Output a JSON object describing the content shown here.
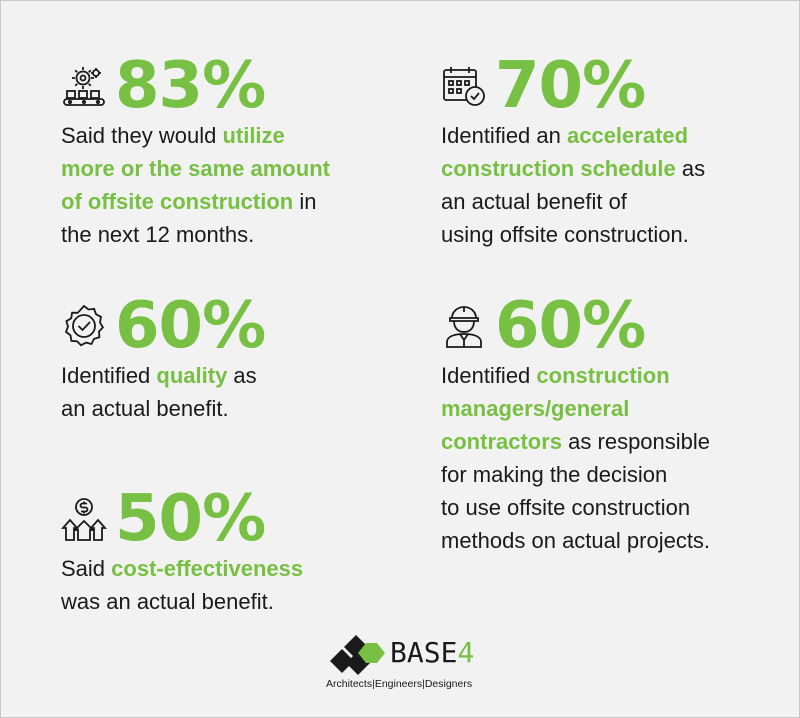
{
  "stats": [
    {
      "value": "83%",
      "icon": "gear-conveyor-icon",
      "desc": [
        {
          "t": "Said they would ",
          "hl": false
        },
        {
          "t": "utilize\nmore or the same amount\nof offsite construction",
          "hl": true
        },
        {
          "t": " in\nthe next 12 months.",
          "hl": false
        }
      ]
    },
    {
      "value": "70%",
      "icon": "calendar-clock-icon",
      "desc": [
        {
          "t": "Identified an ",
          "hl": false
        },
        {
          "t": "accelerated\nconstruction schedule",
          "hl": true
        },
        {
          "t": " as\nan actual benefit of\nusing offsite construction.",
          "hl": false
        }
      ]
    },
    {
      "value": "60%",
      "icon": "quality-badge-icon",
      "desc": [
        {
          "t": "Identified ",
          "hl": false
        },
        {
          "t": "quality",
          "hl": true
        },
        {
          "t": " as\nan actual benefit.",
          "hl": false
        }
      ]
    },
    {
      "value": "60%",
      "icon": "construction-worker-icon",
      "desc": [
        {
          "t": "Identified ",
          "hl": false
        },
        {
          "t": "construction\nmanagers/general\ncontractors",
          "hl": true
        },
        {
          "t": " as responsible\nfor making the decision\nto use offsite construction\nmethods on actual projects.",
          "hl": false
        }
      ]
    },
    {
      "value": "50%",
      "icon": "cost-arrows-icon",
      "desc": [
        {
          "t": "Said ",
          "hl": false
        },
        {
          "t": "cost-effectiveness",
          "hl": true
        },
        {
          "t": "\nwas an actual benefit.",
          "hl": false
        }
      ]
    }
  ],
  "logo": {
    "name": "BASE",
    "name_suffix": "4",
    "tagline": "Architects|Engineers|Designers"
  },
  "colors": {
    "accent": "#77c043",
    "text": "#1a1a1a",
    "background": "#f2f2f2"
  }
}
